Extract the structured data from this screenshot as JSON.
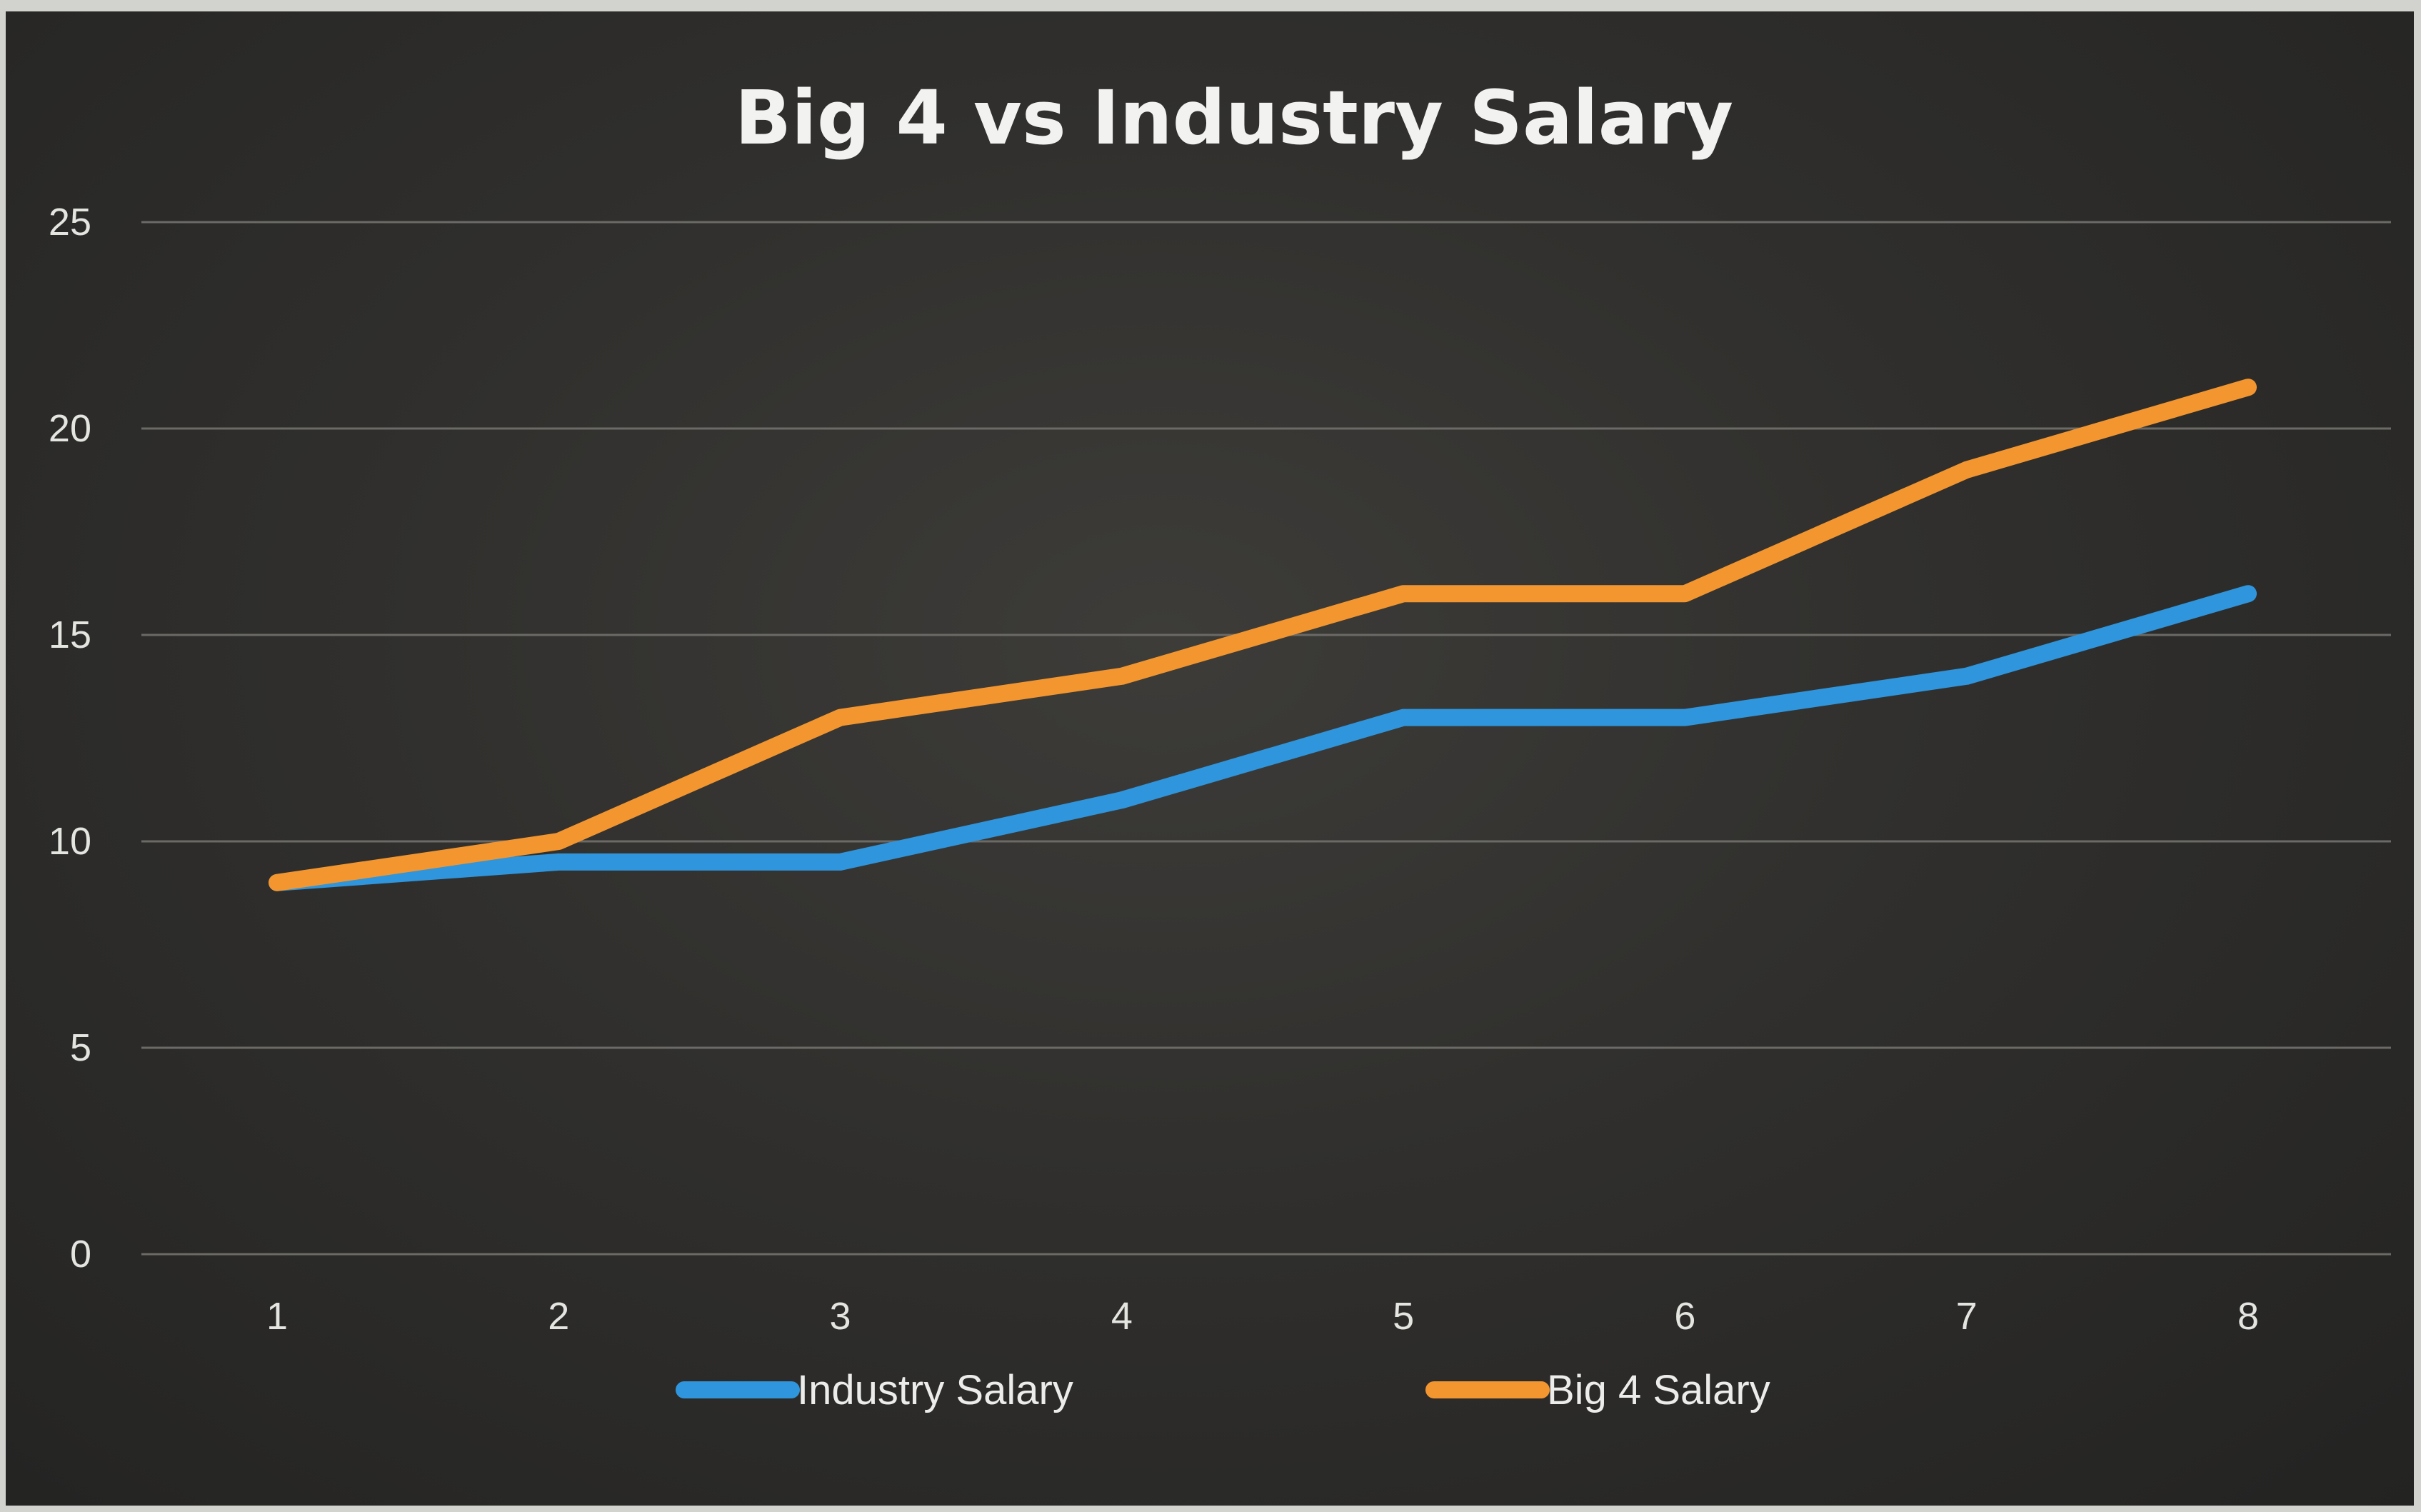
{
  "chart_data": {
    "type": "line",
    "title": "Big 4 vs Industry Salary",
    "xlabel": "",
    "ylabel": "",
    "x": [
      1,
      2,
      3,
      4,
      5,
      6,
      7,
      8
    ],
    "x_tick_labels": [
      "1",
      "2",
      "3",
      "4",
      "5",
      "6",
      "7",
      "8"
    ],
    "y_tick_labels": [
      "0",
      "5",
      "10",
      "15",
      "20",
      "25"
    ],
    "ylim": [
      0,
      25
    ],
    "grid": true,
    "legend_position": "bottom",
    "series": [
      {
        "name": "Industry Salary",
        "color": "#2f95dc",
        "values": [
          9,
          9.5,
          9.5,
          11,
          13,
          13,
          14,
          16
        ]
      },
      {
        "name": "Big 4 Salary",
        "color": "#f3962f",
        "values": [
          9,
          10,
          13,
          14,
          16,
          16,
          19,
          21
        ]
      }
    ]
  }
}
